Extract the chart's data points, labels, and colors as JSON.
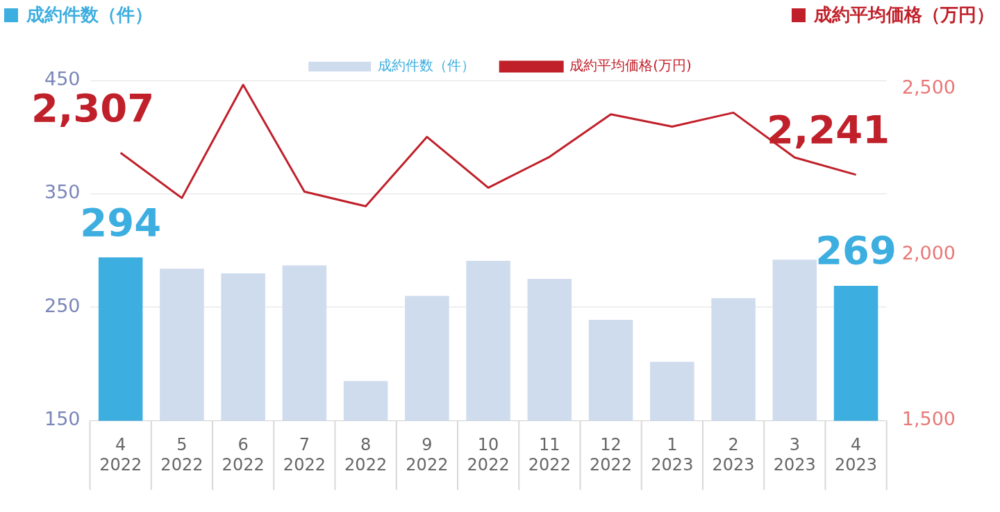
{
  "chart_data": {
    "type": "bar",
    "ylabel": "成約件数（件）",
    "y2label": "成約平均価格（万円）",
    "categories": [
      "4\n2022",
      "5\n2022",
      "6\n2022",
      "7\n2022",
      "8\n2022",
      "9\n2022",
      "10\n2022",
      "11\n2022",
      "12\n2022",
      "1\n2023",
      "2\n2023",
      "3\n2023",
      "4\n2023"
    ],
    "series": [
      {
        "name": "成約件数（件）",
        "color": "#cfdcee",
        "colors": [
          "#3daee0",
          "#cfdcee",
          "#cfdcee",
          "#cfdcee",
          "#cfdcee",
          "#cfdcee",
          "#cfdcee",
          "#cfdcee",
          "#cfdcee",
          "#cfdcee",
          "#cfdcee",
          "#cfdcee",
          "#3daee0"
        ],
        "values": [
          294,
          284,
          280,
          287,
          185,
          260,
          291,
          275,
          239,
          202,
          258,
          292,
          269
        ],
        "value_labels": [
          "294",
          null,
          null,
          null,
          null,
          null,
          null,
          null,
          null,
          null,
          null,
          null,
          "269"
        ]
      },
      {
        "name": "成約平均価格(万円)",
        "type": "line",
        "axis": "y2",
        "color": "#c0202a",
        "values": [
          2307,
          2171,
          2512,
          2190,
          2146,
          2355,
          2202,
          2295,
          2423,
          2386,
          2428,
          2293,
          2241
        ],
        "value_labels": [
          "2,307",
          null,
          null,
          null,
          null,
          null,
          null,
          null,
          null,
          null,
          null,
          null,
          "2,241"
        ]
      }
    ],
    "ylim": [
      150,
      450
    ],
    "yticks": [
      150,
      250,
      350,
      450
    ],
    "y2lim": [
      1500,
      2525
    ],
    "y2ticks": [
      {
        "value": 1500,
        "label": "1,500"
      },
      {
        "value": 2000,
        "label": "2,000"
      },
      {
        "value": 2500,
        "label": "2,500"
      }
    ],
    "grid": "y",
    "legend": "top",
    "marker": "none",
    "line_style": "solid"
  }
}
